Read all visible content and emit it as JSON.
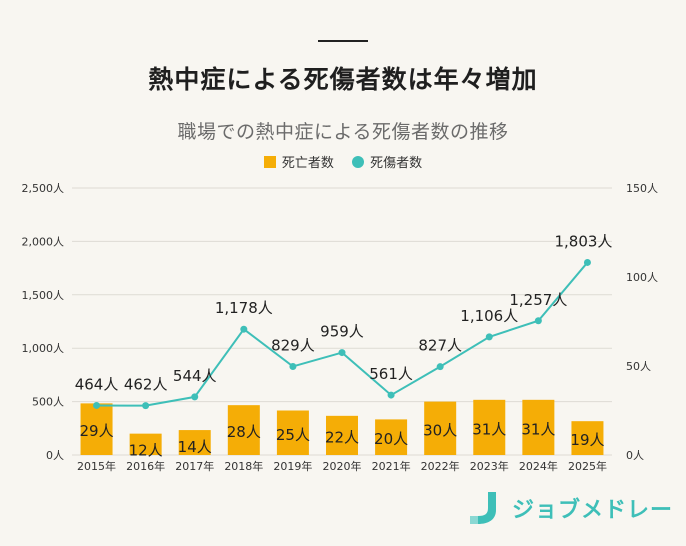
{
  "title": "熱中症による死傷者数は年々増加",
  "chart_data": {
    "type": "bar",
    "subtitle": "職場での熱中症による死傷者数の推移",
    "categories": [
      "2015年",
      "2016年",
      "2017年",
      "2018年",
      "2019年",
      "2020年",
      "2021年",
      "2022年",
      "2023年",
      "2024年",
      "2025年"
    ],
    "series": [
      {
        "name": "死亡者数",
        "type": "bar",
        "axis": "right",
        "color": "#f5ad06",
        "values": [
          29,
          12,
          14,
          28,
          25,
          22,
          20,
          30,
          31,
          31,
          19
        ],
        "labels": [
          "29人",
          "12人",
          "14人",
          "28人",
          "25人",
          "22人",
          "20人",
          "30人",
          "31人",
          "31人",
          "19人"
        ]
      },
      {
        "name": "死傷者数",
        "type": "line",
        "axis": "left",
        "color": "#3ebfb8",
        "values": [
          464,
          462,
          544,
          1178,
          829,
          959,
          561,
          827,
          1106,
          1257,
          1803
        ],
        "labels": [
          "464人",
          "462人",
          "544人",
          "1,178人",
          "829人",
          "959人",
          "561人",
          "827人",
          "1,106人",
          "1,257人",
          "1,803人"
        ]
      }
    ],
    "left_axis": {
      "range": [
        0,
        2500
      ],
      "ticks": [
        0,
        500,
        1000,
        1500,
        2000,
        2500
      ],
      "tick_labels": [
        "0人",
        "500人",
        "1,000人",
        "1,500人",
        "2,000人",
        "2,500人"
      ]
    },
    "right_axis": {
      "range": [
        0,
        150
      ],
      "ticks": [
        0,
        50,
        100,
        150
      ],
      "tick_labels": [
        "0人",
        "50人",
        "100人",
        "150人"
      ]
    },
    "grid": true,
    "legend_position": "top-center"
  },
  "logo": {
    "text": "ジョブメドレー"
  }
}
